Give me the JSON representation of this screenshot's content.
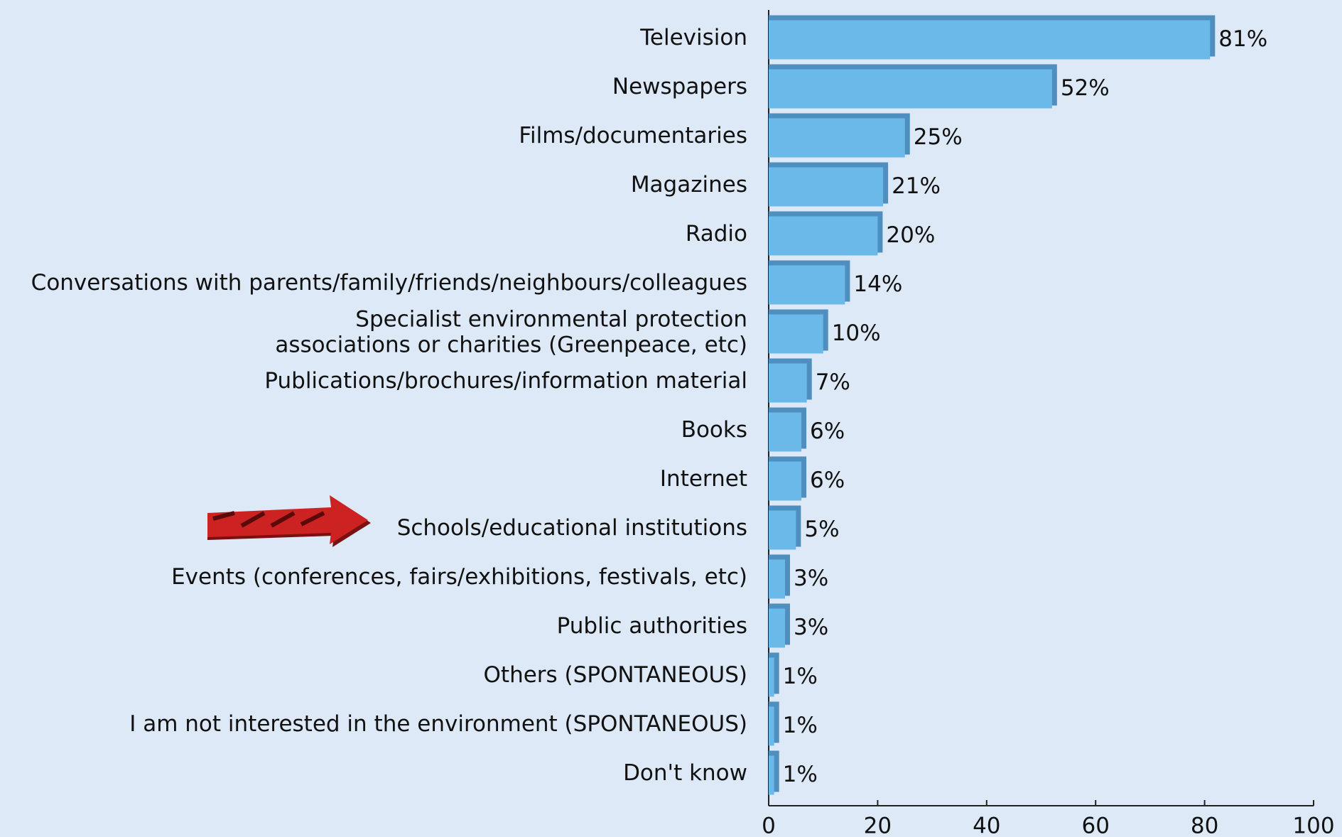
{
  "chart_data": {
    "type": "hbar",
    "categories": [
      "Television",
      "Newspapers",
      "Films/documentaries",
      "Magazines",
      "Radio",
      "Conversations with parents/family/friends/neighbours/colleagues",
      "Specialist environmental protection\nassociations or charities (Greenpeace, etc)",
      "Publications/brochures/information material",
      "Books",
      "Internet",
      "Schools/educational institutions",
      "Events (conferences, fairs/exhibitions, festivals, etc)",
      "Public authorities",
      "Others (SPONTANEOUS)",
      "I am not interested in the environment (SPONTANEOUS)",
      "Don't know"
    ],
    "values": [
      81,
      52,
      25,
      21,
      20,
      14,
      10,
      7,
      6,
      6,
      5,
      3,
      3,
      1,
      1,
      1
    ],
    "value_labels": [
      "81%",
      "52%",
      "25%",
      "21%",
      "20%",
      "14%",
      "10%",
      "7%",
      "6%",
      "6%",
      "5%",
      "3%",
      "3%",
      "1%",
      "1%",
      "1%"
    ],
    "color": "#6bb9e9",
    "edge_color": "#4f8fbf",
    "xlim": [
      0,
      100
    ],
    "xticks": [
      0,
      20,
      40,
      60,
      80,
      100
    ],
    "grid": false
  }
}
